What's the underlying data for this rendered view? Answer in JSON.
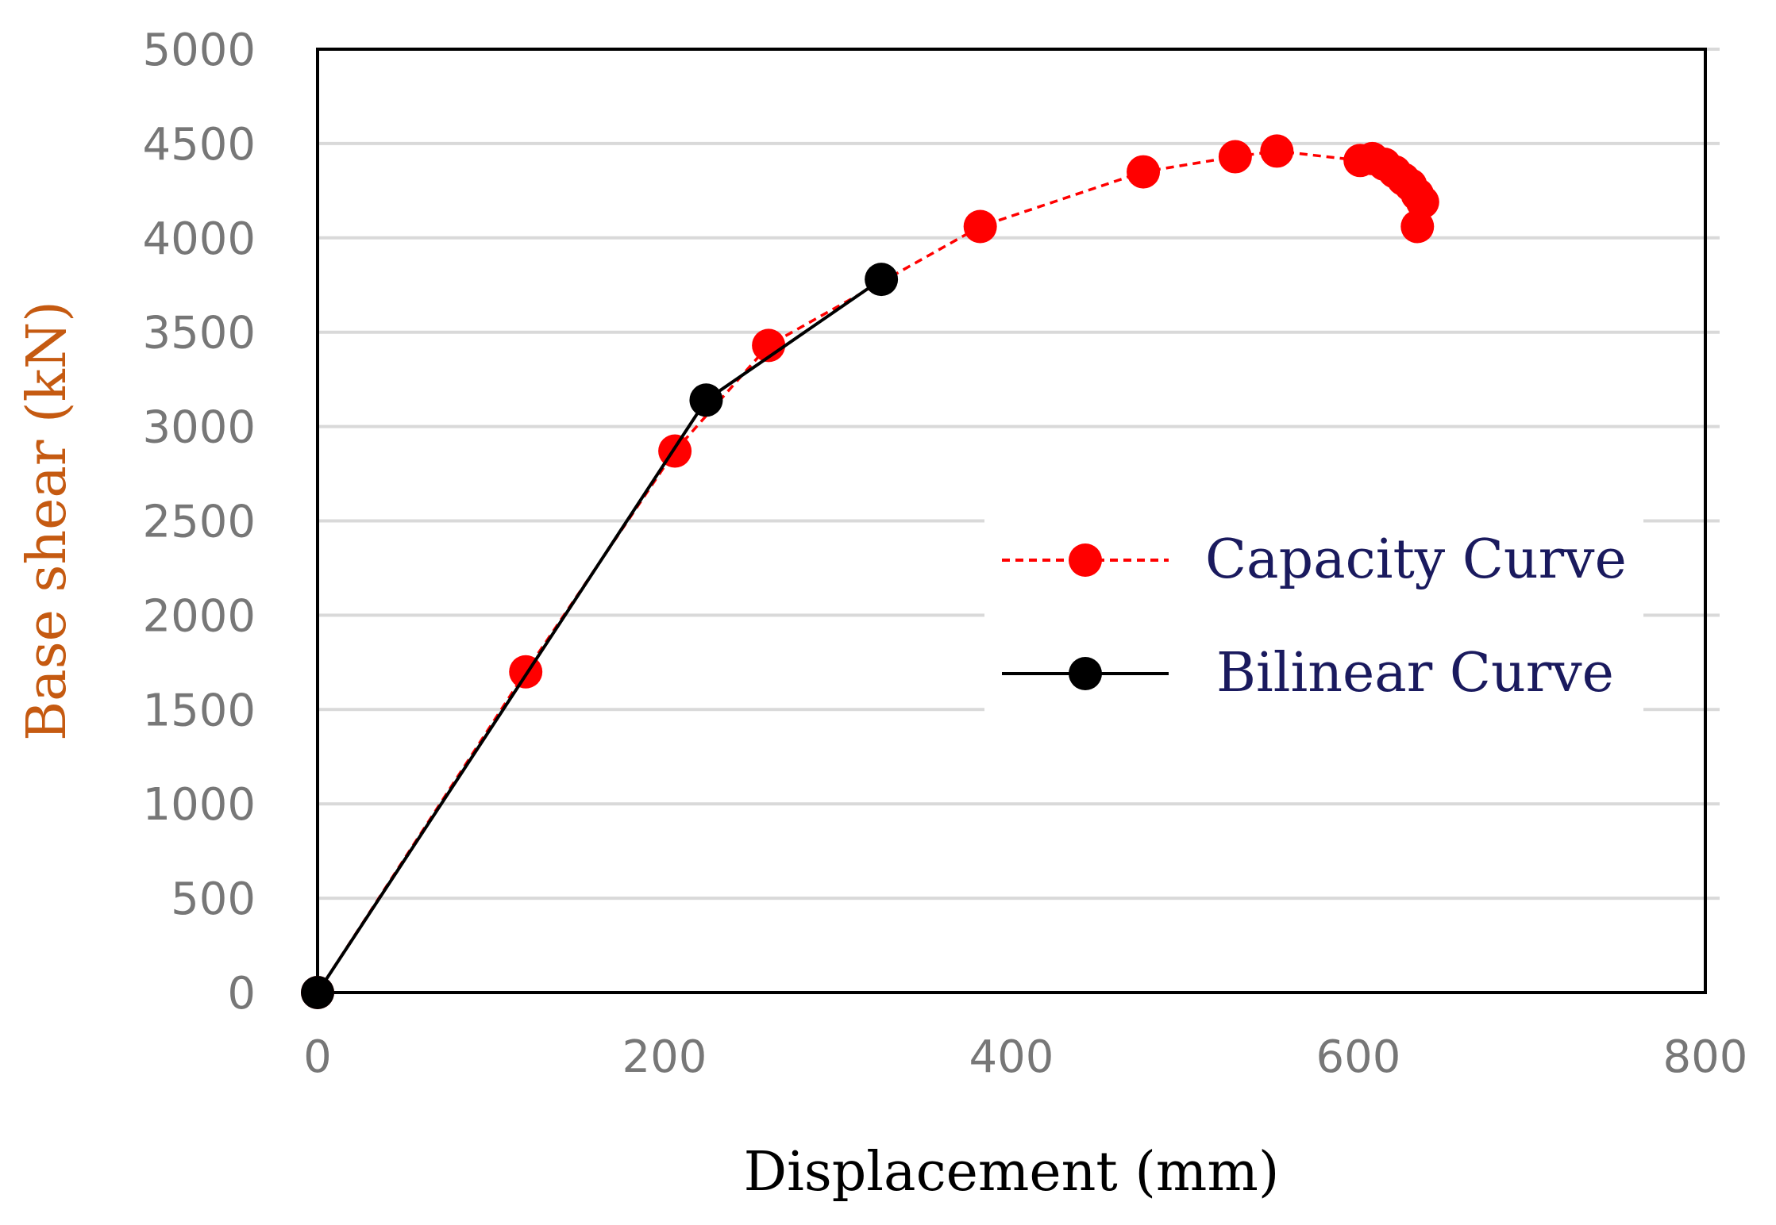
{
  "chart_data": {
    "type": "scatter",
    "xlabel": "Displacement (mm)",
    "ylabel": "Base shear (kN)",
    "xlim": [
      0,
      800
    ],
    "ylim": [
      0,
      5000
    ],
    "xticks": [
      "0",
      "200",
      "400",
      "600",
      "800"
    ],
    "yticks": [
      "0",
      "500",
      "1000",
      "1500",
      "2000",
      "2500",
      "3000",
      "3500",
      "4000",
      "4500",
      "5000"
    ],
    "grid": "horizontal",
    "legend_position": "right-middle",
    "series": [
      {
        "name": "Capacity Curve",
        "color": "#ff0000",
        "line_style": "dashed",
        "marker": "circle",
        "points": [
          [
            0,
            0
          ],
          [
            120,
            1700
          ],
          [
            206,
            2870
          ],
          [
            260,
            3430
          ],
          [
            382,
            4060
          ],
          [
            476,
            4350
          ],
          [
            529,
            4430
          ],
          [
            553,
            4460
          ],
          [
            601,
            4410
          ],
          [
            608,
            4420
          ],
          [
            615,
            4390
          ],
          [
            621,
            4350
          ],
          [
            626,
            4310
          ],
          [
            630,
            4280
          ],
          [
            634,
            4230
          ],
          [
            637,
            4190
          ],
          [
            634,
            4060
          ]
        ]
      },
      {
        "name": "Bilinear Curve",
        "color": "#000000",
        "line_style": "solid",
        "marker": "circle",
        "points": [
          [
            0,
            0
          ],
          [
            224,
            3140
          ],
          [
            325,
            3780
          ]
        ]
      }
    ]
  }
}
